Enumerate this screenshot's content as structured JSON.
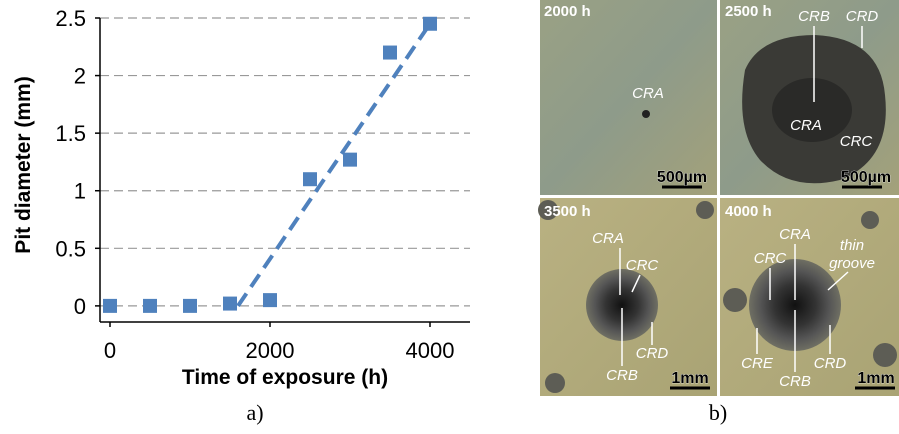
{
  "chart_data": {
    "type": "scatter",
    "y_label": "Pit diameter (mm)",
    "x_label": "Time of exposure (h)",
    "panel_label": "a)",
    "x": [
      0,
      500,
      1000,
      1500,
      2000,
      2500,
      3000,
      3500,
      4000
    ],
    "values": [
      0,
      0,
      0,
      0.02,
      0.05,
      1.1,
      1.27,
      2.2,
      2.45
    ],
    "color": "#4f81bd",
    "trendline": {
      "x": [
        1600,
        4000
      ],
      "values": [
        0,
        2.45
      ]
    },
    "xlim": [
      -125,
      4500
    ],
    "ylim": [
      -0.14,
      2.5
    ],
    "xticks": [
      0,
      2000,
      4000
    ],
    "yticks": [
      0,
      0.5,
      1,
      1.5,
      2,
      2.5
    ],
    "grid": true
  },
  "micrographs": {
    "panel_label": "b)",
    "panels": [
      {
        "time": "2000 h",
        "labels": [
          "CRA"
        ],
        "scale": "500µm"
      },
      {
        "time": "2500 h",
        "labels": [
          "CRB",
          "CRD",
          "CRA",
          "CRC"
        ],
        "scale": "500µm"
      },
      {
        "time": "3500 h",
        "labels": [
          "CRA",
          "CRC",
          "CRD",
          "CRB"
        ],
        "scale": "1mm"
      },
      {
        "time": "4000 h",
        "labels": [
          "CRA",
          "CRC",
          "thin",
          "groove",
          "CRE",
          "CRB",
          "CRD"
        ],
        "scale": "1mm"
      }
    ]
  }
}
